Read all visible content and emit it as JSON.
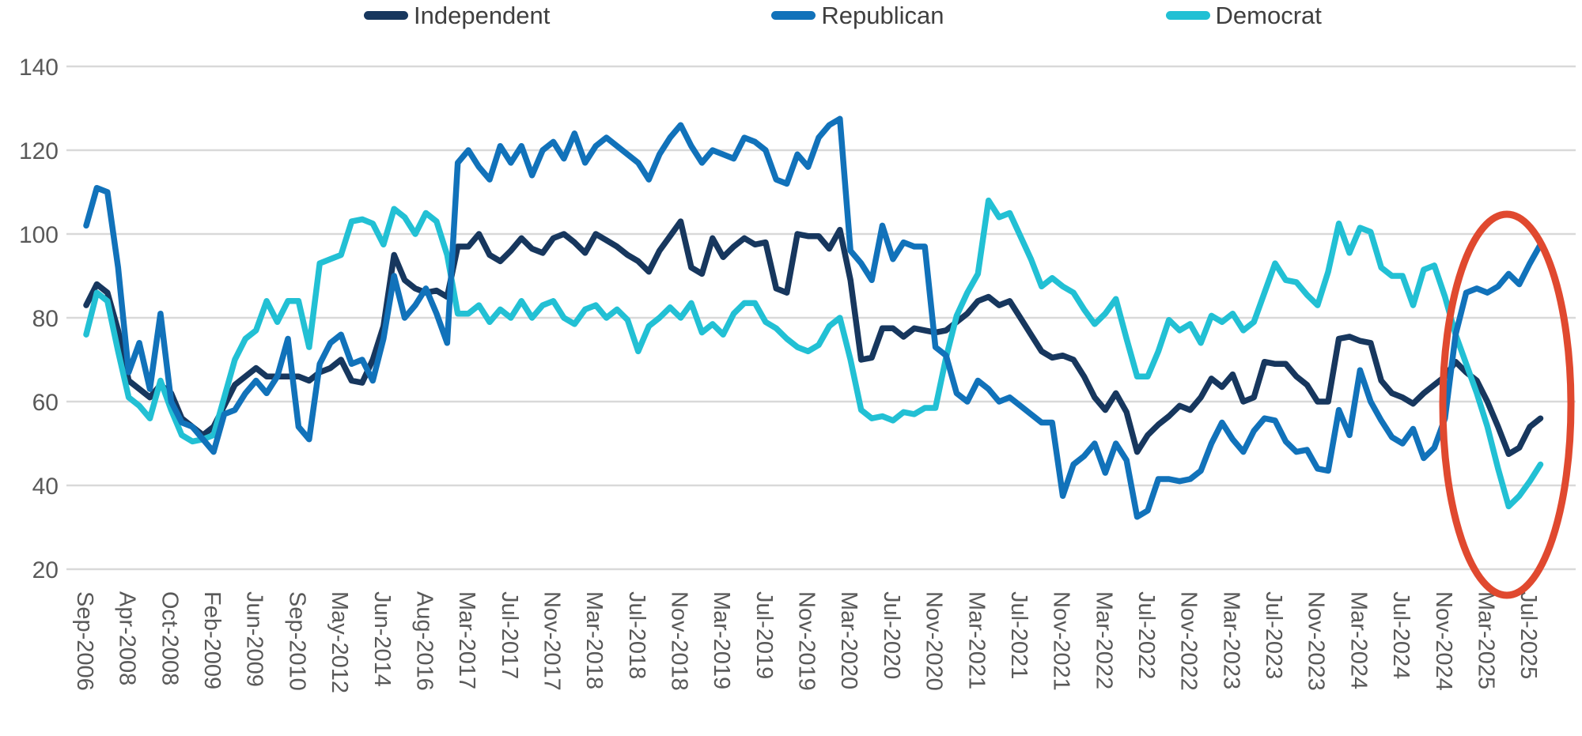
{
  "legend": [
    {
      "label": "Independent",
      "color": "#17375E"
    },
    {
      "label": "Republican",
      "color": "#1172BA"
    },
    {
      "label": "Democrat",
      "color": "#22C0D4"
    }
  ],
  "colors": {
    "gridline": "#D9D9D9",
    "axis_text": "#595959",
    "legend_text": "#3F3F3F",
    "annotation": "#E0492F",
    "background": "#FFFFFF"
  },
  "chart_data": {
    "type": "line",
    "title": "",
    "xlabel": "",
    "ylabel": "",
    "ylim": [
      20,
      140
    ],
    "yticks": [
      140,
      120,
      100,
      80,
      60,
      40,
      20
    ],
    "grid": "horizontal",
    "legend_position": "top-center",
    "x_tick_rotation": 90,
    "label_every": 4,
    "x_labels": [
      "Sep-2006",
      "Apr-2008",
      "Oct-2008",
      "Feb-2009",
      "Jun-2009",
      "Sep-2010",
      "May-2012",
      "Jun-2014",
      "Aug-2016",
      "Mar-2017",
      "Jul-2017",
      "Nov-2017",
      "Mar-2018",
      "Jul-2018",
      "Nov-2018",
      "Mar-2019",
      "Jul-2019",
      "Nov-2019",
      "Mar-2020",
      "Jul-2020",
      "Nov-2020",
      "Mar-2021",
      "Jul-2021",
      "Nov-2021",
      "Mar-2022",
      "Jul-2022",
      "Nov-2022",
      "Mar-2023",
      "Jul-2023",
      "Nov-2023",
      "Mar-2024",
      "Jul-2024",
      "Nov-2024",
      "Mar-2025",
      "Jul-2025"
    ],
    "n_points": 138,
    "series": [
      {
        "name": "Independent",
        "color": "#17375E",
        "values": [
          83,
          88,
          86,
          77,
          65,
          63,
          61,
          64,
          62,
          56,
          54,
          52,
          54,
          59,
          64,
          66,
          68,
          66,
          66,
          66,
          66,
          65,
          67,
          68,
          70,
          65,
          64.5,
          70,
          78,
          95,
          89,
          87,
          86,
          86.5,
          85,
          97,
          97,
          100,
          95,
          93.5,
          96,
          99,
          96.5,
          95.5,
          99,
          100,
          98,
          95.5,
          100,
          98.5,
          97,
          95,
          93.5,
          91,
          96,
          99.5,
          103,
          92,
          90.5,
          99,
          94.5,
          97,
          99,
          97.5,
          98,
          87,
          86,
          100,
          99.5,
          99.5,
          96.5,
          101,
          89,
          70,
          70.5,
          77.5,
          77.5,
          75.5,
          77.5,
          77,
          76.5,
          77,
          79,
          81,
          84,
          85,
          83,
          84,
          80,
          76,
          72,
          70.5,
          71,
          70,
          66,
          61,
          58,
          62,
          57.5,
          48,
          52,
          54.5,
          56.5,
          59,
          58,
          61,
          65.5,
          63.5,
          66.5,
          60,
          61,
          69.5,
          69,
          69,
          66,
          64,
          60,
          60,
          75,
          75.5,
          74.5,
          74,
          65,
          62,
          61,
          59.5,
          62,
          64,
          66,
          69.5,
          67,
          65,
          60,
          54,
          47.5,
          49,
          54,
          56
        ]
      },
      {
        "name": "Republican",
        "color": "#1172BA",
        "values": [
          102,
          111,
          110,
          92,
          67,
          74,
          63,
          81,
          60,
          55,
          54,
          51,
          48,
          57,
          58,
          62,
          65,
          62,
          66,
          75,
          54,
          51,
          69,
          74,
          76,
          69,
          70,
          65,
          75,
          90,
          80,
          83,
          87,
          81,
          74,
          117,
          120,
          116,
          113,
          121,
          117,
          121,
          114,
          120,
          122,
          118,
          124,
          117,
          121,
          123,
          121,
          119,
          117,
          113,
          119,
          123,
          126,
          121,
          117,
          120,
          119,
          118,
          123,
          122,
          120,
          113,
          112,
          119,
          116,
          123,
          126,
          127.5,
          96,
          93,
          89,
          102,
          94,
          98,
          97,
          97,
          73,
          71,
          62,
          60,
          65,
          63,
          60,
          61,
          59,
          57,
          55,
          55,
          37.5,
          45,
          47,
          50,
          43,
          50,
          46,
          32.5,
          34,
          41.5,
          41.5,
          41,
          41.5,
          43.5,
          50,
          55,
          51,
          48,
          53,
          56,
          55.5,
          50.5,
          48,
          48.5,
          44,
          43.5,
          58,
          52,
          67.5,
          60,
          55.5,
          51.5,
          50,
          53.5,
          46.5,
          49,
          56,
          76,
          86,
          87,
          86,
          87.5,
          90.5,
          88,
          93,
          97.5
        ]
      },
      {
        "name": "Democrat",
        "color": "#22C0D4",
        "values": [
          76,
          86,
          84,
          72,
          61,
          59,
          56,
          65,
          58,
          52,
          50.5,
          51,
          52,
          61,
          70,
          75,
          77,
          84,
          79,
          84,
          84,
          73,
          93,
          94,
          95,
          103,
          103.5,
          102.5,
          97.5,
          106,
          104,
          100,
          105,
          103,
          95,
          81,
          81,
          83,
          79,
          82,
          80,
          84,
          80,
          83,
          84,
          80,
          78.5,
          82,
          83,
          80,
          82,
          79.5,
          72,
          78,
          80,
          82.5,
          80,
          83.5,
          76.5,
          78.5,
          76,
          81,
          83.5,
          83.5,
          79,
          77.5,
          75,
          73,
          72,
          73.5,
          78,
          80,
          70,
          58,
          56,
          56.5,
          55.5,
          57.5,
          57,
          58.5,
          58.5,
          70.5,
          80.5,
          86,
          90.5,
          108,
          104,
          105,
          99.5,
          94,
          87.5,
          89.5,
          87.5,
          86,
          82,
          78.5,
          81,
          84.5,
          75,
          66,
          66,
          72,
          79.5,
          77,
          78.5,
          74,
          80.5,
          79,
          81,
          77,
          79,
          86,
          93,
          89,
          88.5,
          85.5,
          83,
          91,
          102.5,
          95.5,
          101.5,
          100.5,
          92,
          90,
          90,
          83,
          91.5,
          92.5,
          85,
          76,
          69,
          62,
          54,
          44,
          35,
          37.5,
          41,
          45
        ]
      }
    ],
    "annotation": {
      "shape": "ellipse",
      "color": "#E0492F",
      "highlighted_labels": [
        "Mar-2025",
        "Jul-2025"
      ]
    }
  }
}
